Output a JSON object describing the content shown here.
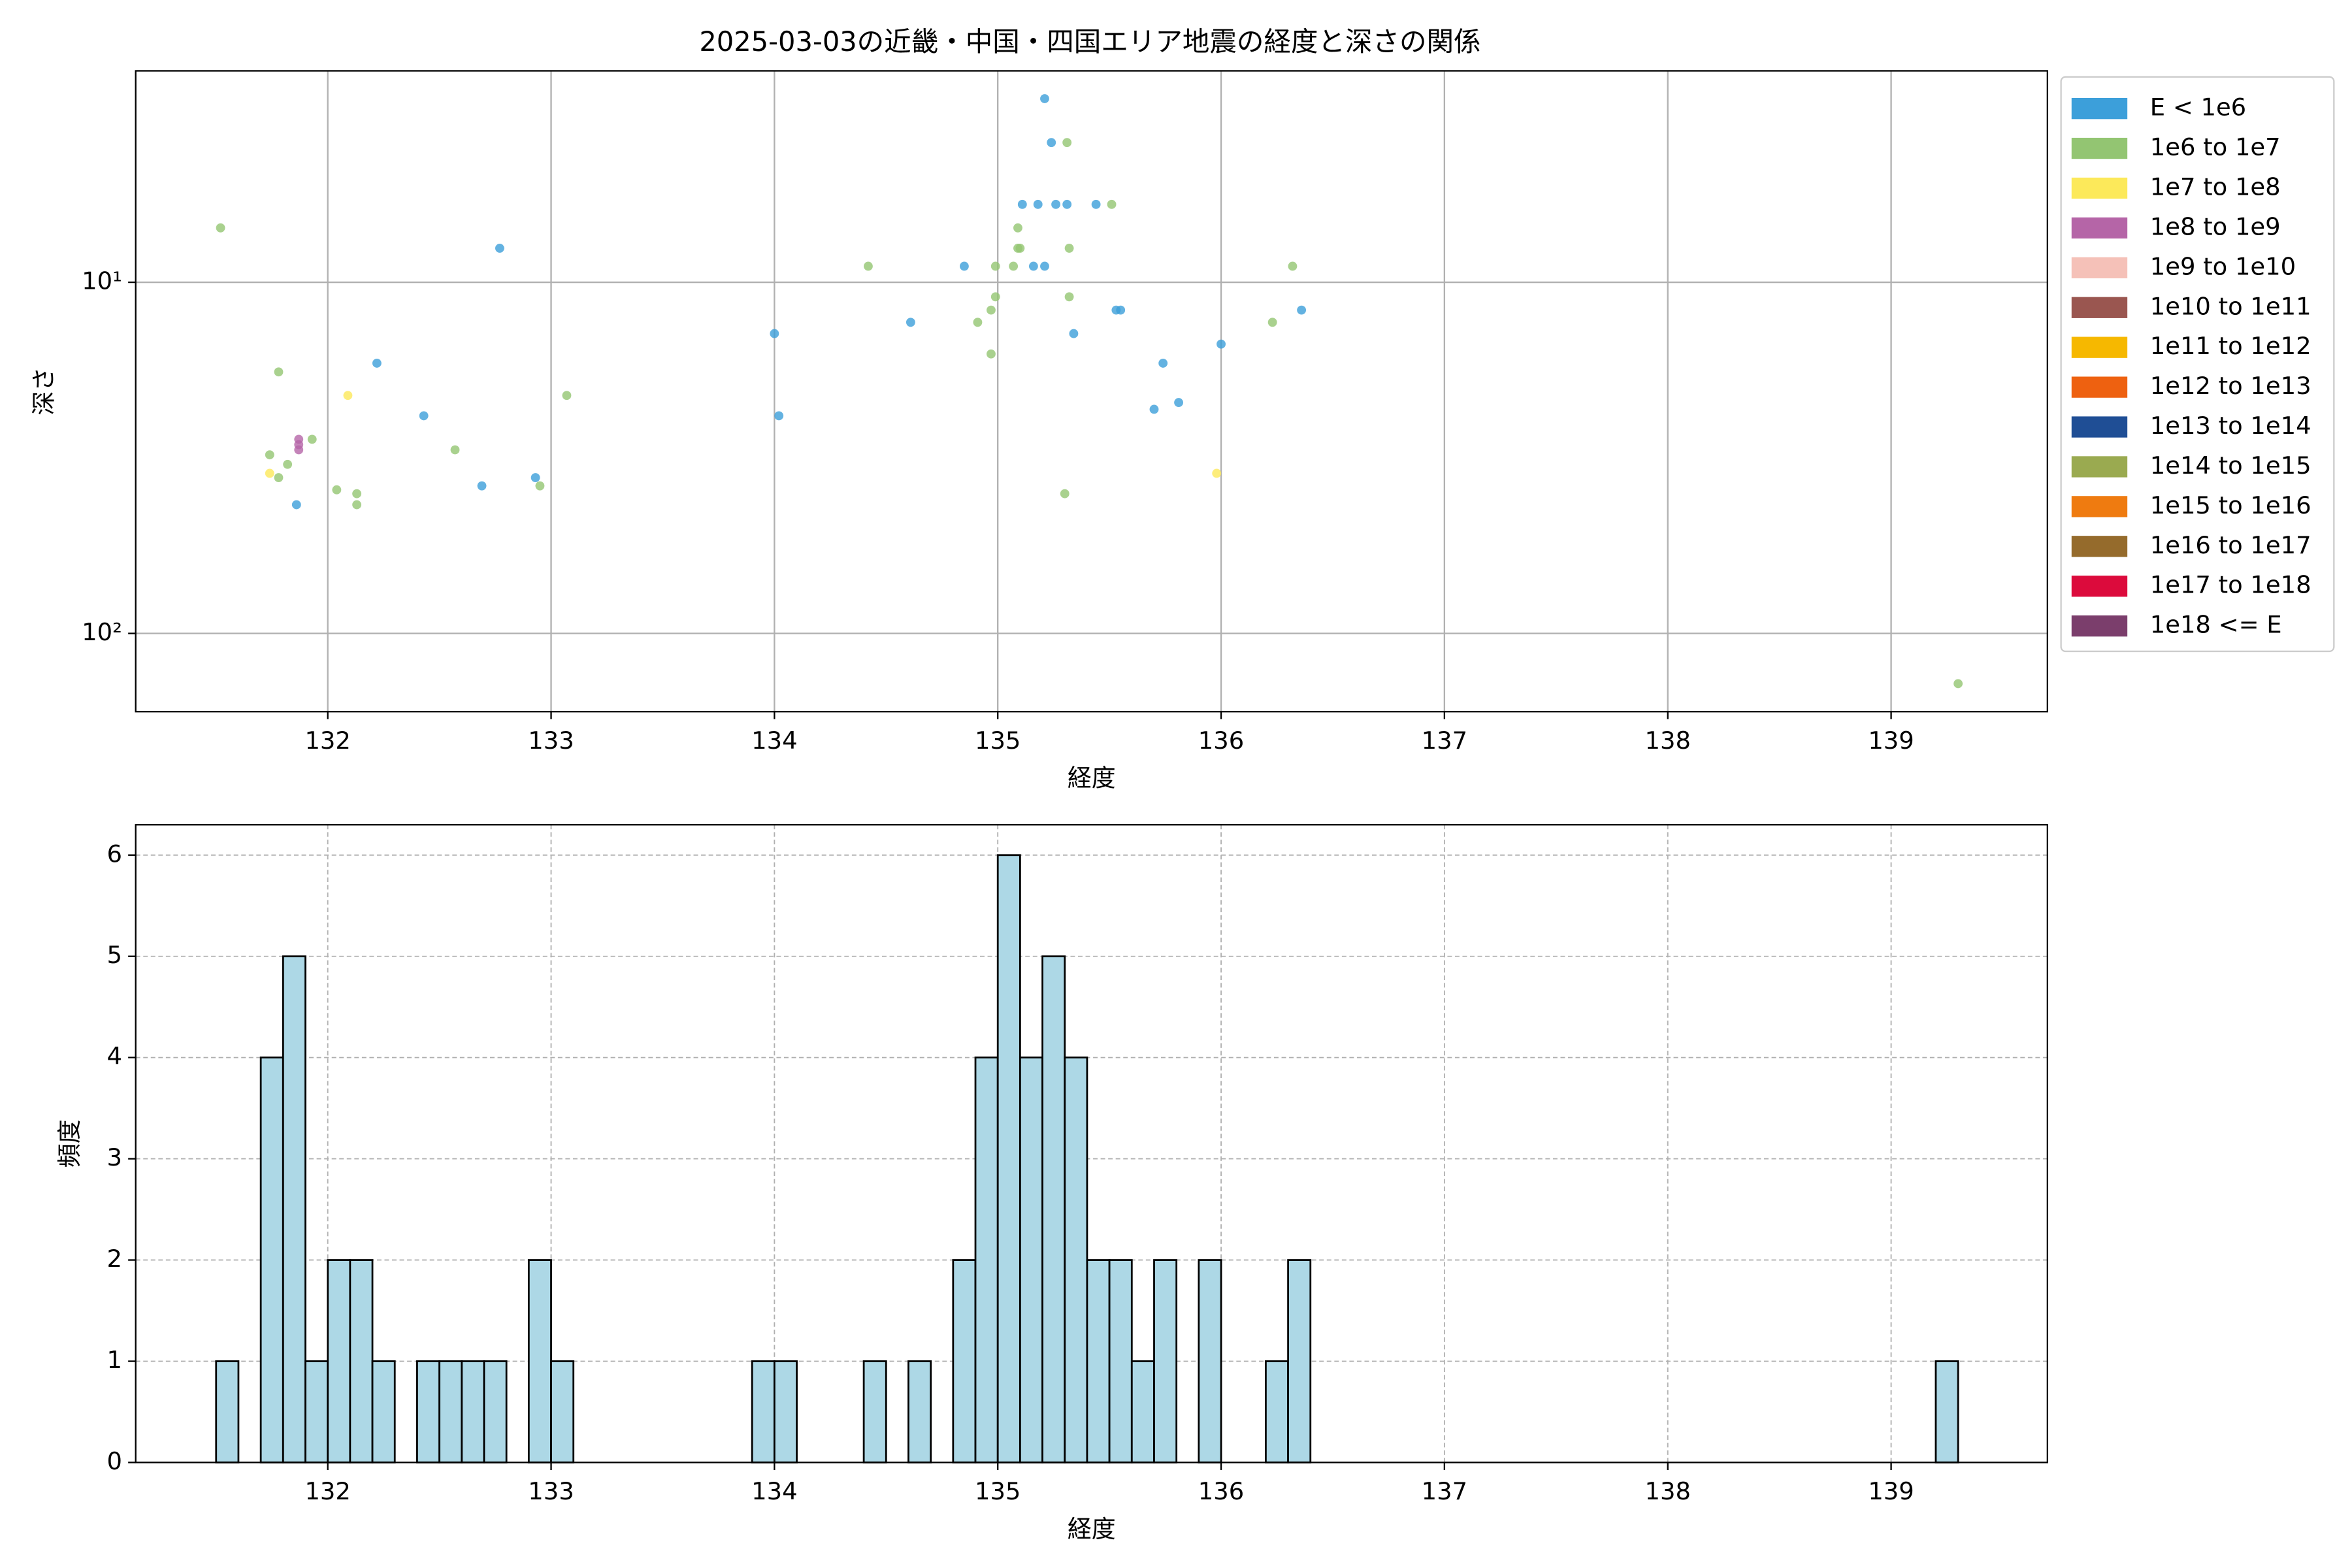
{
  "chart_data": [
    {
      "type": "scatter",
      "title": "2025-03-03の近畿・中国・四国エリア地震の経度と深さの関係",
      "x_label": "経度",
      "y_label": "深さ",
      "xlim": [
        131.14,
        139.7
      ],
      "xticks": [
        132,
        133,
        134,
        135,
        136,
        137,
        138,
        139
      ],
      "ylim": [
        167,
        2.5
      ],
      "yscale": "log",
      "yticks": [
        {
          "value": 10,
          "label": "10¹"
        },
        {
          "value": 100,
          "label": "10²"
        }
      ],
      "grid": true,
      "grid_linestyle": "solid",
      "legend": "outside-right",
      "series": [
        {
          "name": "E < 1e6",
          "color": "#3c9fda",
          "x": [
            135.21,
            135.24,
            135.11,
            135.18,
            135.26,
            135.31,
            135.44,
            134.85,
            135.16,
            135.21,
            132.77,
            135.53,
            135.55,
            136.36,
            134.61,
            134.0,
            135.34,
            136.0,
            132.22,
            135.74,
            135.81,
            135.7,
            132.43,
            134.02,
            132.93,
            132.69,
            131.86
          ],
          "y": [
            3.0,
            4.0,
            6,
            6,
            6,
            6,
            6,
            9,
            9,
            9,
            8,
            12,
            12,
            12,
            13,
            14,
            14,
            15,
            17,
            17,
            22,
            23,
            24,
            24,
            36,
            38,
            43
          ]
        },
        {
          "name": "1e6 to 1e7",
          "color": "#93c572",
          "x": [
            131.52,
            135.31,
            135.51,
            135.09,
            135.09,
            135.1,
            135.32,
            134.42,
            134.99,
            135.07,
            136.32,
            135.32,
            134.99,
            134.97,
            134.91,
            136.23,
            134.97,
            131.78,
            133.07,
            131.93,
            132.57,
            131.74,
            131.82,
            131.78,
            132.04,
            132.13,
            132.13,
            132.95,
            135.3,
            139.3
          ],
          "y": [
            7,
            4,
            6,
            7,
            8,
            8,
            8,
            9,
            9,
            9,
            9,
            11,
            11,
            12,
            13,
            13,
            16,
            18,
            21,
            28,
            30,
            31,
            33,
            36,
            39,
            40,
            43,
            38,
            40,
            139
          ]
        },
        {
          "name": "1e7 to 1e8",
          "color": "#fce95a",
          "x": [
            132.09,
            131.74,
            135.98
          ],
          "y": [
            21,
            35,
            35
          ]
        },
        {
          "name": "1e8 to 1e9",
          "color": "#b565a7",
          "x": [
            131.87,
            131.87,
            131.87
          ],
          "y": [
            28,
            29,
            30
          ]
        },
        {
          "name": "1e9 to 1e10",
          "color": "#f5c1b8",
          "x": [],
          "y": []
        },
        {
          "name": "1e10 to 1e11",
          "color": "#9a5650",
          "x": [],
          "y": []
        },
        {
          "name": "1e11 to 1e12",
          "color": "#f6b800",
          "x": [],
          "y": []
        },
        {
          "name": "1e12 to 1e13",
          "color": "#ee6110",
          "x": [],
          "y": []
        },
        {
          "name": "1e13 to 1e14",
          "color": "#1f4e95",
          "x": [],
          "y": []
        },
        {
          "name": "1e14 to 1e15",
          "color": "#9aaa50",
          "x": [],
          "y": []
        },
        {
          "name": "1e15 to 1e16",
          "color": "#ef7b10",
          "x": [],
          "y": []
        },
        {
          "name": "1e16 to 1e17",
          "color": "#956b2c",
          "x": [],
          "y": []
        },
        {
          "name": "1e17 to 1e18",
          "color": "#dc0b3c",
          "x": [],
          "y": []
        },
        {
          "name": "1e18 <= E",
          "color": "#7b3e6c",
          "x": [],
          "y": []
        }
      ]
    },
    {
      "type": "histogram",
      "x_label": "経度",
      "y_label": "頻度",
      "color": "#add8e6",
      "edgecolor": "#000000",
      "xlim": [
        131.14,
        139.7
      ],
      "xticks": [
        132,
        133,
        134,
        135,
        136,
        137,
        138,
        139
      ],
      "ylim": [
        0,
        6.3
      ],
      "yticks": [
        0,
        1,
        2,
        3,
        4,
        5,
        6
      ],
      "grid": true,
      "grid_linestyle": "dashed",
      "bins": [
        131.5,
        131.6,
        131.7,
        131.8,
        131.9,
        132.0,
        132.1,
        132.2,
        132.3,
        132.4,
        132.5,
        132.6,
        132.7,
        132.8,
        132.9,
        133.0,
        133.1,
        133.2,
        133.3,
        133.4,
        133.5,
        133.6,
        133.7,
        133.8,
        133.9,
        134.0,
        134.1,
        134.2,
        134.3,
        134.4,
        134.5,
        134.6,
        134.7,
        134.8,
        134.9,
        135.0,
        135.1,
        135.2,
        135.3,
        135.4,
        135.5,
        135.6,
        135.7,
        135.8,
        135.9,
        136.0,
        136.1,
        136.2,
        136.3,
        136.4,
        136.5,
        136.6,
        136.7,
        136.8,
        136.9,
        137.0,
        137.1,
        137.2,
        137.3,
        137.4,
        137.5,
        137.6,
        137.7,
        137.8,
        137.9,
        138.0,
        138.1,
        138.2,
        138.3,
        138.4,
        138.5,
        138.6,
        138.7,
        138.8,
        138.9,
        139.0,
        139.1,
        139.2,
        139.3
      ],
      "counts": [
        1,
        0,
        4,
        5,
        1,
        2,
        2,
        1,
        0,
        1,
        1,
        1,
        1,
        0,
        2,
        1,
        0,
        0,
        0,
        0,
        0,
        0,
        0,
        0,
        1,
        1,
        0,
        0,
        0,
        1,
        0,
        1,
        0,
        2,
        4,
        6,
        4,
        5,
        4,
        2,
        2,
        1,
        2,
        0,
        2,
        0,
        0,
        1,
        2,
        0,
        0,
        0,
        0,
        0,
        0,
        0,
        0,
        0,
        0,
        0,
        0,
        0,
        0,
        0,
        0,
        0,
        0,
        0,
        0,
        0,
        0,
        0,
        0,
        0,
        0,
        0,
        0,
        1
      ]
    }
  ]
}
